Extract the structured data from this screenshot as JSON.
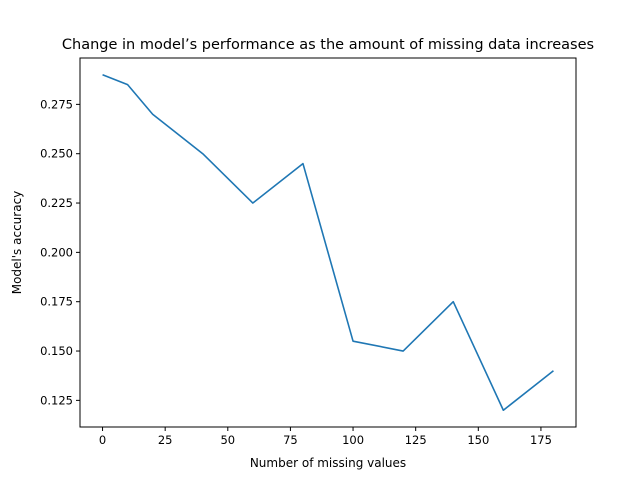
{
  "chart_data": {
    "type": "line",
    "title": "Change in model’s performance as the amount of missing data increases",
    "xlabel": "Number of missing values",
    "ylabel": "Model's accuracy",
    "xlim": [
      -9,
      189
    ],
    "ylim": [
      0.1115,
      0.2985
    ],
    "xticks": [
      0,
      25,
      50,
      75,
      100,
      125,
      150,
      175
    ],
    "xtick_labels": [
      "0",
      "25",
      "50",
      "75",
      "100",
      "125",
      "150",
      "175"
    ],
    "yticks": [
      0.125,
      0.15,
      0.175,
      0.2,
      0.225,
      0.25,
      0.275
    ],
    "ytick_labels": [
      "0.125",
      "0.150",
      "0.175",
      "0.200",
      "0.225",
      "0.250",
      "0.275"
    ],
    "grid": false,
    "series": [
      {
        "color": "#1f77b4",
        "x": [
          0,
          10,
          20,
          40,
          60,
          80,
          100,
          120,
          140,
          160,
          180
        ],
        "y": [
          0.29,
          0.285,
          0.27,
          0.25,
          0.225,
          0.245,
          0.155,
          0.15,
          0.175,
          0.12,
          0.14
        ]
      }
    ]
  }
}
